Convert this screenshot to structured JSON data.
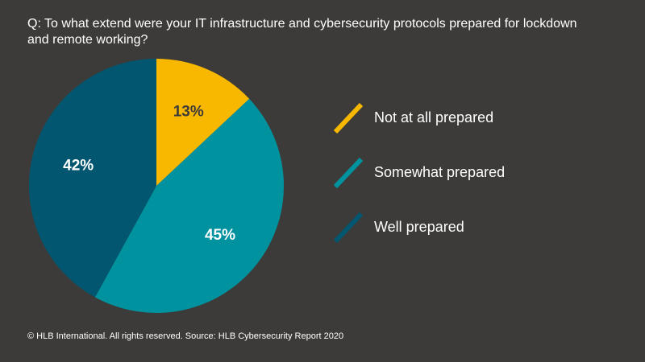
{
  "question": "Q: To what extend were your IT infrastructure and cybersecurity protocols prepared for lockdown and remote working?",
  "footer": "© HLB International. All rights reserved. Source: HLB Cybersecurity Report 2020",
  "chart_data": {
    "type": "pie",
    "title": "Q: To what extend were your IT infrastructure and cybersecurity protocols prepared for lockdown and remote working?",
    "start_angle": "12 o'clock, clockwise",
    "legend_position": "right",
    "slices": [
      {
        "name": "Not at all prepared",
        "value": 13,
        "label": "13%",
        "color": "#f9b800",
        "label_color": "#3c3b39"
      },
      {
        "name": "Somewhat prepared",
        "value": 45,
        "label": "45%",
        "color": "#00939f",
        "label_color": "#ffffff"
      },
      {
        "name": "Well prepared",
        "value": 42,
        "label": "42%",
        "color": "#02566f",
        "label_color": "#ffffff"
      }
    ]
  }
}
